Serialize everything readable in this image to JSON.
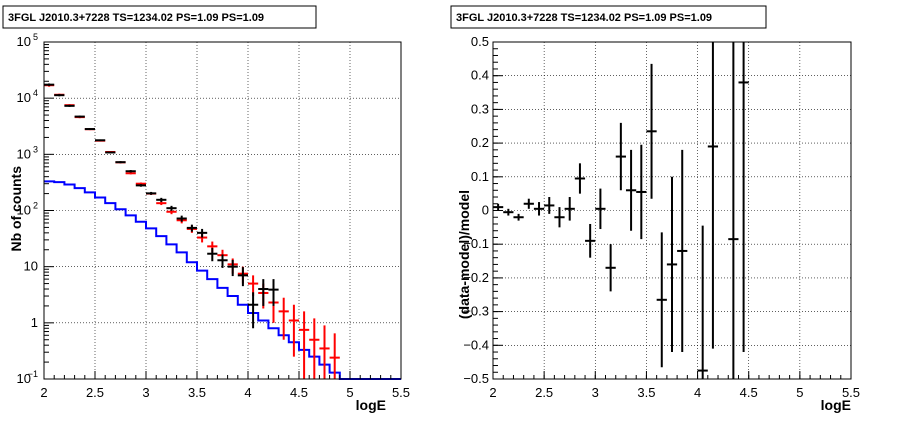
{
  "chart_data": [
    {
      "type": "step",
      "title": "3FGL J2010.3+7228 TS=1234.02 PS=1.09 PS=1.09",
      "xlabel": "logE",
      "ylabel": "Nb of counts",
      "xlim": [
        2,
        5.5
      ],
      "ylim": [
        0.1,
        100000
      ],
      "ylog": true,
      "grid": true,
      "x_ticks": [
        "2",
        "2.5",
        "3",
        "3.5",
        "4",
        "4.5",
        "5",
        "5.5"
      ],
      "y_ticks": [
        {
          "value": 0.1,
          "label": "10",
          "exp": "−1"
        },
        {
          "value": 1,
          "label": "1",
          "exp": ""
        },
        {
          "value": 10,
          "label": "10",
          "exp": ""
        },
        {
          "value": 100,
          "label": "10",
          "exp": "2"
        },
        {
          "value": 1000,
          "label": "10",
          "exp": "3"
        },
        {
          "value": 10000,
          "label": "10",
          "exp": "4"
        },
        {
          "value": 100000,
          "label": "10",
          "exp": "5"
        }
      ],
      "series": [
        {
          "color": "#0000ff",
          "style": "step",
          "edges": [
            2.0,
            2.1,
            2.2,
            2.3,
            2.4,
            2.5,
            2.6,
            2.7,
            2.8,
            2.9,
            3.0,
            3.1,
            3.2,
            3.3,
            3.4,
            3.5,
            3.6,
            3.7,
            3.8,
            3.9,
            4.0,
            4.1,
            4.2,
            4.3,
            4.4,
            4.5,
            4.6,
            4.7,
            4.8,
            4.9,
            5.0,
            5.5
          ],
          "values": [
            330,
            320,
            290,
            250,
            210,
            170,
            135,
            105,
            82,
            63,
            48,
            35,
            25,
            18,
            12,
            8.5,
            6,
            4.2,
            3,
            2.1,
            1.5,
            1.1,
            0.8,
            0.6,
            0.45,
            0.33,
            0.25,
            0.18,
            0.13,
            0.1,
            0.1
          ]
        },
        {
          "color": "#ff0000",
          "style": "errorbars",
          "points": [
            {
              "x": 2.05,
              "y": 17000,
              "lo": 16000,
              "hi": 18000
            },
            {
              "x": 2.15,
              "y": 11500,
              "lo": 11000,
              "hi": 12000
            },
            {
              "x": 2.25,
              "y": 7500,
              "lo": 7200,
              "hi": 7800
            },
            {
              "x": 2.35,
              "y": 4600,
              "lo": 4400,
              "hi": 4800
            },
            {
              "x": 2.45,
              "y": 2800,
              "lo": 2700,
              "hi": 2900
            },
            {
              "x": 2.55,
              "y": 1750,
              "lo": 1700,
              "hi": 1800
            },
            {
              "x": 2.65,
              "y": 1100,
              "lo": 1060,
              "hi": 1140
            },
            {
              "x": 2.75,
              "y": 720,
              "lo": 690,
              "hi": 750
            },
            {
              "x": 2.85,
              "y": 460,
              "lo": 440,
              "hi": 480
            },
            {
              "x": 2.95,
              "y": 300,
              "lo": 285,
              "hi": 315
            },
            {
              "x": 3.05,
              "y": 200,
              "lo": 190,
              "hi": 210
            },
            {
              "x": 3.15,
              "y": 135,
              "lo": 125,
              "hi": 145
            },
            {
              "x": 3.25,
              "y": 95,
              "lo": 86,
              "hi": 104
            },
            {
              "x": 3.35,
              "y": 67,
              "lo": 59,
              "hi": 75
            },
            {
              "x": 3.45,
              "y": 47,
              "lo": 40,
              "hi": 54
            },
            {
              "x": 3.55,
              "y": 33,
              "lo": 27,
              "hi": 39
            },
            {
              "x": 3.65,
              "y": 23,
              "lo": 18,
              "hi": 28
            },
            {
              "x": 3.75,
              "y": 16,
              "lo": 12,
              "hi": 20
            },
            {
              "x": 3.85,
              "y": 11,
              "lo": 7.5,
              "hi": 14
            },
            {
              "x": 3.95,
              "y": 7.5,
              "lo": 5,
              "hi": 10
            },
            {
              "x": 4.05,
              "y": 5,
              "lo": 3,
              "hi": 7
            },
            {
              "x": 4.15,
              "y": 3.4,
              "lo": 1.8,
              "hi": 5
            },
            {
              "x": 4.25,
              "y": 2.3,
              "lo": 1,
              "hi": 3.6
            },
            {
              "x": 4.35,
              "y": 1.6,
              "lo": 0.5,
              "hi": 2.8
            },
            {
              "x": 4.45,
              "y": 1.1,
              "lo": 0.25,
              "hi": 2.1
            },
            {
              "x": 4.55,
              "y": 0.75,
              "lo": 0.1,
              "hi": 1.6
            },
            {
              "x": 4.65,
              "y": 0.5,
              "lo": 0.1,
              "hi": 1.2
            },
            {
              "x": 4.75,
              "y": 0.35,
              "lo": 0.1,
              "hi": 0.9
            },
            {
              "x": 4.85,
              "y": 0.24,
              "lo": 0.1,
              "hi": 0.65
            }
          ]
        },
        {
          "color": "#000000",
          "style": "errorbars",
          "points": [
            {
              "x": 2.05,
              "y": 17400,
              "lo": 16500,
              "hi": 18300
            },
            {
              "x": 2.15,
              "y": 11300,
              "lo": 10800,
              "hi": 11800
            },
            {
              "x": 2.25,
              "y": 7300,
              "lo": 7000,
              "hi": 7600
            },
            {
              "x": 2.35,
              "y": 4700,
              "lo": 4500,
              "hi": 4900
            },
            {
              "x": 2.45,
              "y": 2820,
              "lo": 2720,
              "hi": 2920
            },
            {
              "x": 2.55,
              "y": 1780,
              "lo": 1720,
              "hi": 1840
            },
            {
              "x": 2.65,
              "y": 1080,
              "lo": 1040,
              "hi": 1120
            },
            {
              "x": 2.75,
              "y": 725,
              "lo": 695,
              "hi": 755
            },
            {
              "x": 2.85,
              "y": 500,
              "lo": 475,
              "hi": 525
            },
            {
              "x": 2.95,
              "y": 280,
              "lo": 265,
              "hi": 295
            },
            {
              "x": 3.05,
              "y": 202,
              "lo": 190,
              "hi": 214
            },
            {
              "x": 3.15,
              "y": 155,
              "lo": 142,
              "hi": 168
            },
            {
              "x": 3.25,
              "y": 110,
              "lo": 99,
              "hi": 121
            },
            {
              "x": 3.35,
              "y": 72,
              "lo": 63,
              "hi": 81
            },
            {
              "x": 3.45,
              "y": 49,
              "lo": 42,
              "hi": 56
            },
            {
              "x": 3.55,
              "y": 40,
              "lo": 33,
              "hi": 47
            },
            {
              "x": 3.65,
              "y": 17,
              "lo": 12.5,
              "hi": 21.5
            },
            {
              "x": 3.75,
              "y": 13,
              "lo": 9.5,
              "hi": 16.5
            },
            {
              "x": 3.85,
              "y": 10,
              "lo": 6.8,
              "hi": 13.2
            },
            {
              "x": 3.95,
              "y": 7,
              "lo": 4.5,
              "hi": 9.8
            },
            {
              "x": 4.05,
              "y": 2.1,
              "lo": 0.8,
              "hi": 3.5
            },
            {
              "x": 4.15,
              "y": 4,
              "lo": 2,
              "hi": 6
            },
            {
              "x": 4.25,
              "y": 3.9,
              "lo": 2,
              "hi": 6
            }
          ]
        }
      ]
    },
    {
      "type": "errorbars",
      "title": "3FGL J2010.3+7228 TS=1234.02 PS=1.09 PS=1.09",
      "xlabel": "logE",
      "ylabel": "(data-model)/model",
      "xlim": [
        2,
        5.5
      ],
      "ylim": [
        -0.5,
        0.5
      ],
      "grid": true,
      "x_ticks": [
        "2",
        "2.5",
        "3",
        "3.5",
        "4",
        "4.5",
        "5",
        "5.5"
      ],
      "y_ticks": [
        "−0.5",
        "−0.4",
        "−0.3",
        "−0.2",
        "−0.1",
        "0",
        "0.1",
        "0.2",
        "0.3",
        "0.4",
        "0.5"
      ],
      "series": [
        {
          "color": "#000000",
          "points": [
            {
              "x": 2.05,
              "y": 0.01,
              "err": 0.01
            },
            {
              "x": 2.15,
              "y": -0.005,
              "err": 0.01
            },
            {
              "x": 2.25,
              "y": -0.02,
              "err": 0.01
            },
            {
              "x": 2.35,
              "y": 0.02,
              "err": 0.015
            },
            {
              "x": 2.45,
              "y": 0.005,
              "err": 0.02
            },
            {
              "x": 2.55,
              "y": 0.015,
              "err": 0.025
            },
            {
              "x": 2.65,
              "y": -0.02,
              "err": 0.03
            },
            {
              "x": 2.75,
              "y": 0.005,
              "err": 0.035
            },
            {
              "x": 2.85,
              "y": 0.095,
              "err": 0.045
            },
            {
              "x": 2.95,
              "y": -0.09,
              "err": 0.05
            },
            {
              "x": 3.05,
              "y": 0.005,
              "err": 0.06
            },
            {
              "x": 3.15,
              "y": -0.17,
              "err": 0.07
            },
            {
              "x": 3.25,
              "y": 0.16,
              "err": 0.1
            },
            {
              "x": 3.35,
              "y": 0.06,
              "err": 0.12
            },
            {
              "x": 3.45,
              "y": 0.055,
              "err": 0.14
            },
            {
              "x": 3.55,
              "y": 0.235,
              "err": 0.2
            },
            {
              "x": 3.65,
              "y": -0.265,
              "err": 0.2
            },
            {
              "x": 3.75,
              "y": -0.16,
              "err": 0.26
            },
            {
              "x": 3.85,
              "y": -0.12,
              "err": 0.3
            },
            {
              "x": 4.05,
              "y": -0.475,
              "err": 0.43
            },
            {
              "x": 4.15,
              "y": 0.19,
              "err": 0.6
            },
            {
              "x": 4.35,
              "y": -0.085,
              "err": 0.7
            },
            {
              "x": 4.45,
              "y": 0.38,
              "err": 0.8
            }
          ]
        }
      ]
    }
  ]
}
